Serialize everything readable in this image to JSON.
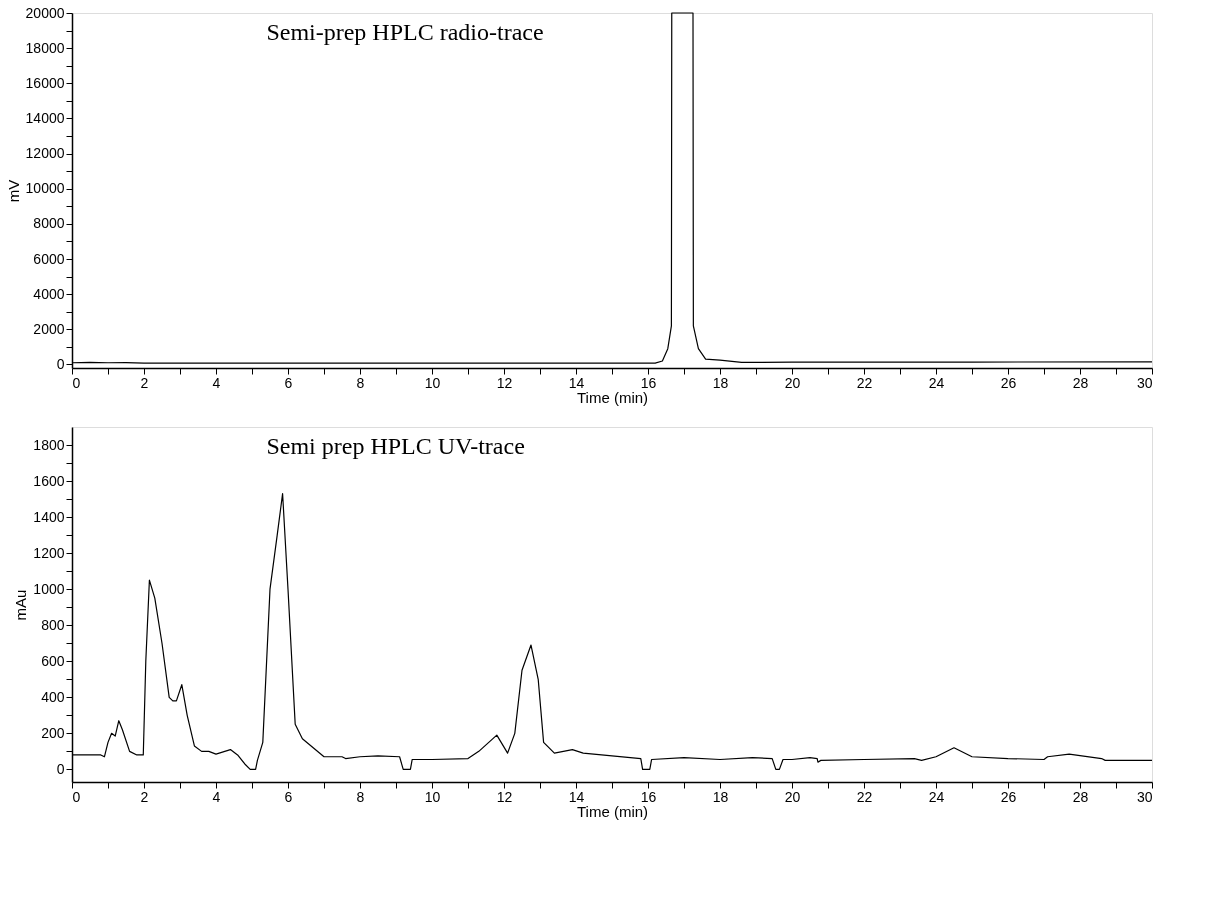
{
  "chart_data": [
    {
      "type": "line",
      "title": "Semi-prep HPLC radio-trace",
      "xlabel": "Time (min)",
      "ylabel": "mV",
      "x": [
        0,
        0.5,
        1,
        1.5,
        2,
        4,
        8,
        12,
        16,
        16.2,
        16.4,
        16.55,
        16.65,
        16.66,
        17.25,
        17.26,
        17.4,
        17.6,
        18,
        18.6,
        20,
        25,
        30
      ],
      "series": [
        {
          "color": "#000000",
          "values": [
            100,
            120,
            100,
            110,
            80,
            80,
            80,
            80,
            80,
            80,
            200,
            900,
            2200,
            20000,
            20000,
            2200,
            900,
            300,
            250,
            120,
            130,
            140,
            150
          ]
        }
      ],
      "xlim": [
        0,
        30
      ],
      "ylim": [
        -200,
        20000
      ],
      "xticks": [
        0,
        {
          "value": 1,
          "label": null
        },
        2,
        {
          "value": 3,
          "label": null
        },
        4,
        {
          "value": 5,
          "label": null
        },
        6,
        {
          "value": 7,
          "label": null
        },
        8,
        {
          "value": 9,
          "label": null
        },
        10,
        {
          "value": 11,
          "label": null
        },
        12,
        {
          "value": 13,
          "label": null
        },
        14,
        {
          "value": 15,
          "label": null
        },
        16,
        {
          "value": 17,
          "label": null
        },
        18,
        {
          "value": 19,
          "label": null
        },
        20,
        {
          "value": 21,
          "label": null
        },
        22,
        {
          "value": 23,
          "label": null
        },
        24,
        {
          "value": 25,
          "label": null
        },
        26,
        {
          "value": 27,
          "label": null
        },
        28,
        {
          "value": 29,
          "label": null
        },
        30
      ],
      "yticks": [
        0,
        {
          "value": 1000,
          "label": null
        },
        2000,
        {
          "value": 3000,
          "label": null
        },
        4000,
        {
          "value": 5000,
          "label": null
        },
        6000,
        {
          "value": 7000,
          "label": null
        },
        8000,
        {
          "value": 9000,
          "label": null
        },
        10000,
        {
          "value": 11000,
          "label": null
        },
        12000,
        {
          "value": 13000,
          "label": null
        },
        14000,
        {
          "value": 15000,
          "label": null
        },
        16000,
        {
          "value": 17000,
          "label": null
        },
        18000,
        {
          "value": 19000,
          "label": null
        },
        20000
      ],
      "grid": false,
      "marker": "none",
      "line_style": "solid"
    },
    {
      "type": "line",
      "title": "Semi prep HPLC UV-trace",
      "xlabel": "Time (min)",
      "ylabel": "mAu",
      "x": [
        0,
        0.8,
        0.9,
        1.0,
        1.1,
        1.2,
        1.3,
        1.4,
        1.6,
        1.8,
        1.98,
        2.05,
        2.15,
        2.3,
        2.5,
        2.7,
        2.8,
        2.9,
        3.05,
        3.2,
        3.4,
        3.6,
        3.8,
        4.0,
        4.4,
        4.6,
        4.8,
        4.95,
        5.1,
        5.15,
        5.3,
        5.5,
        5.7,
        5.85,
        6.0,
        6.2,
        6.4,
        6.7,
        7.0,
        7.5,
        7.6,
        8.0,
        8.5,
        9.1,
        9.2,
        9.4,
        9.45,
        10.0,
        11.0,
        11.3,
        11.8,
        12.1,
        12.3,
        12.5,
        12.75,
        12.95,
        13.1,
        13.4,
        13.9,
        14.2,
        15.8,
        15.85,
        16.05,
        16.1,
        17,
        18,
        18.9,
        19.45,
        19.55,
        19.65,
        19.75,
        20.0,
        20.5,
        20.7,
        20.72,
        20.8,
        22,
        23.4,
        23.6,
        24.0,
        24.5,
        25.0,
        26.0,
        27.0,
        27.1,
        27.7,
        28.6,
        28.7,
        30
      ],
      "series": [
        {
          "color": "#000000",
          "values": [
            80,
            80,
            70,
            150,
            200,
            185,
            270,
            220,
            100,
            80,
            80,
            600,
            1050,
            950,
            700,
            400,
            380,
            380,
            470,
            300,
            130,
            100,
            100,
            85,
            110,
            80,
            30,
            0,
            0,
            50,
            150,
            1000,
            1300,
            1530,
            1000,
            250,
            170,
            120,
            70,
            70,
            60,
            70,
            75,
            70,
            0,
            0,
            55,
            55,
            60,
            100,
            190,
            90,
            200,
            550,
            690,
            500,
            150,
            90,
            110,
            90,
            60,
            0,
            0,
            55,
            65,
            55,
            65,
            60,
            0,
            0,
            55,
            55,
            65,
            60,
            40,
            50,
            55,
            60,
            50,
            70,
            120,
            70,
            60,
            55,
            70,
            85,
            60,
            50,
            50
          ]
        }
      ],
      "xlim": [
        0,
        30
      ],
      "ylim": [
        -70,
        1900
      ],
      "xticks": [
        0,
        {
          "value": 1,
          "label": null
        },
        2,
        {
          "value": 3,
          "label": null
        },
        4,
        {
          "value": 5,
          "label": null
        },
        6,
        {
          "value": 7,
          "label": null
        },
        8,
        {
          "value": 9,
          "label": null
        },
        10,
        {
          "value": 11,
          "label": null
        },
        12,
        {
          "value": 13,
          "label": null
        },
        14,
        {
          "value": 15,
          "label": null
        },
        16,
        {
          "value": 17,
          "label": null
        },
        18,
        {
          "value": 19,
          "label": null
        },
        20,
        {
          "value": 21,
          "label": null
        },
        22,
        {
          "value": 23,
          "label": null
        },
        24,
        {
          "value": 25,
          "label": null
        },
        26,
        {
          "value": 27,
          "label": null
        },
        28,
        {
          "value": 29,
          "label": null
        },
        30
      ],
      "yticks": [
        0,
        {
          "value": 100,
          "label": null
        },
        200,
        {
          "value": 300,
          "label": null
        },
        400,
        {
          "value": 500,
          "label": null
        },
        600,
        {
          "value": 700,
          "label": null
        },
        800,
        {
          "value": 900,
          "label": null
        },
        1000,
        {
          "value": 1100,
          "label": null
        },
        1200,
        {
          "value": 1300,
          "label": null
        },
        1400,
        {
          "value": 1500,
          "label": null
        },
        1600,
        {
          "value": 1700,
          "label": null
        },
        1800
      ],
      "grid": false,
      "marker": "none",
      "line_style": "solid"
    }
  ]
}
